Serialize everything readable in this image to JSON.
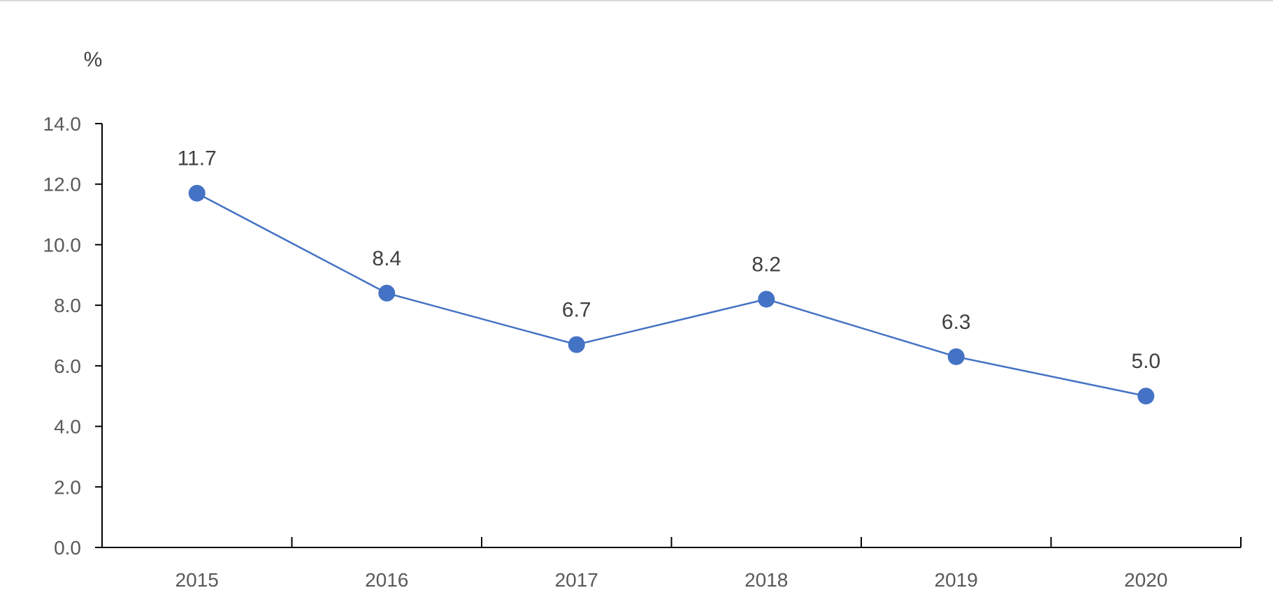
{
  "chart_data": {
    "type": "line",
    "title": "",
    "xlabel": "",
    "ylabel": "",
    "unit_label": "%",
    "categories": [
      "2015",
      "2016",
      "2017",
      "2018",
      "2019",
      "2020"
    ],
    "series": [
      {
        "values": [
          11.7,
          8.4,
          6.7,
          8.2,
          6.3,
          5.0
        ],
        "color": "#4472c4"
      }
    ],
    "data_labels": [
      "11.7",
      "8.4",
      "6.7",
      "8.2",
      "6.3",
      "5.0"
    ],
    "ylim": [
      0,
      14
    ],
    "yticks": [
      0,
      2,
      4,
      6,
      8,
      10,
      12,
      14
    ],
    "ytick_labels": [
      "0.0",
      "2.0",
      "4.0",
      "6.0",
      "8.0",
      "10.0",
      "12.0",
      "14.0"
    ],
    "grid": false,
    "legend": "none",
    "colors": {
      "line": "#4472c4",
      "marker": "#4472c4",
      "axis": "#000000",
      "tick_text": "#595959",
      "label_text": "#404040"
    }
  }
}
